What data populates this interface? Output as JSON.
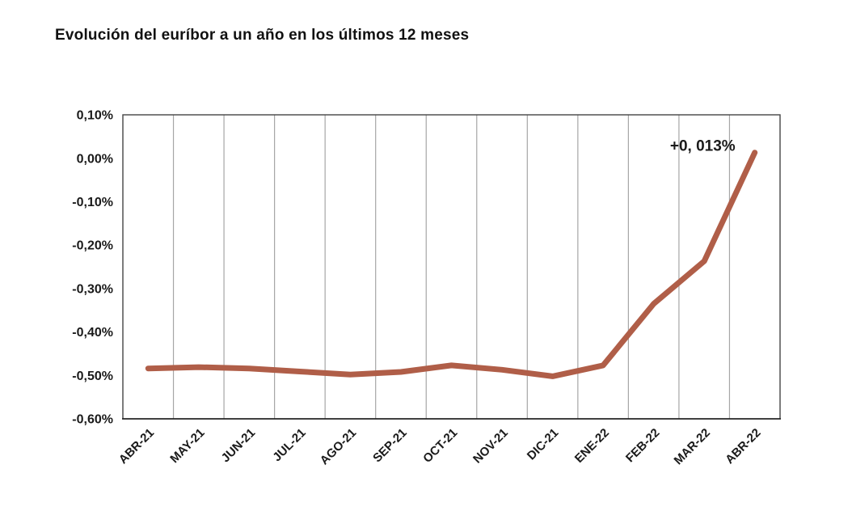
{
  "title": "Evolución del euríbor a un año en los últimos 12 meses",
  "chart_data": {
    "type": "line",
    "title": "Evolución del euríbor a un año en los últimos 12 meses",
    "categories": [
      "ABR-21",
      "MAY-21",
      "JUN-21",
      "JUL-21",
      "AGO-21",
      "SEP-21",
      "OCT-21",
      "NOV-21",
      "DIC-21",
      "ENE-22",
      "FEB-22",
      "MAR-22",
      "ABR-22"
    ],
    "values": [
      -0.484,
      -0.481,
      -0.484,
      -0.491,
      -0.498,
      -0.492,
      -0.477,
      -0.487,
      -0.502,
      -0.477,
      -0.335,
      -0.237,
      0.013
    ],
    "unit": "%",
    "ylim": [
      -0.6,
      0.1
    ],
    "ytick_labels": [
      "0,10%",
      "0,00%",
      "-0,10%",
      "-0,20%",
      "-0,30%",
      "-0,40%",
      "-0,50%",
      "-0,60%"
    ],
    "annotation": {
      "text": "+0, 013%",
      "target_index": 12
    },
    "xlabel": "",
    "ylabel": "",
    "legend": "none",
    "grid": "vertical-only",
    "xtick_rotation_deg": -45,
    "colors": {
      "line": "#b05e48",
      "gridline": "#a6a6a6",
      "plot_border": "#454545",
      "axis_bottom": "#1a1a1a",
      "text": "#1a1a1a",
      "background": "#ffffff"
    }
  }
}
